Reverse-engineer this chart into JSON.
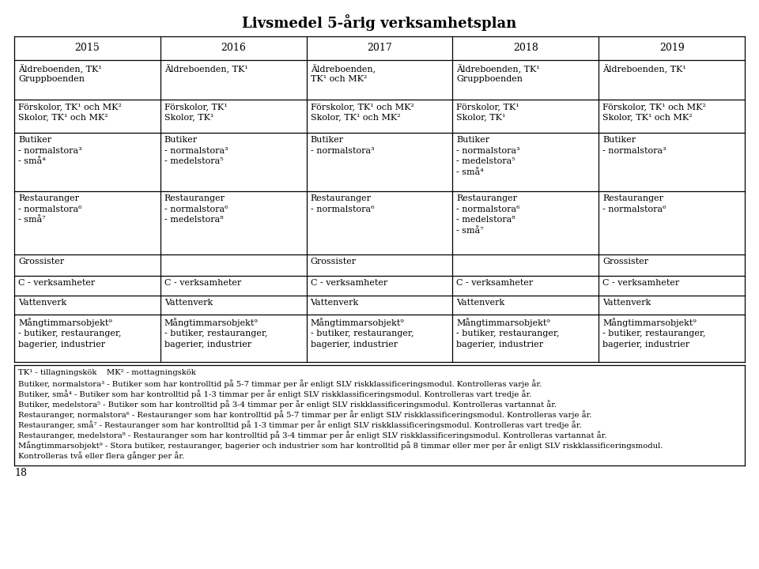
{
  "title": "Livsmedel 5-årig verksamhetsplan",
  "columns": [
    "2015",
    "2016",
    "2017",
    "2018",
    "2019"
  ],
  "rows": [
    [
      "Äldreboenden, TK¹\nGruppboenden",
      "Äldreboenden, TK¹",
      "Äldreboenden,\nTK¹ och MK²",
      "Äldreboenden, TK¹\nGruppboenden",
      "Äldreboenden, TK¹"
    ],
    [
      "Förskolor, TK¹ och MK²\nSkolor, TK¹ och MK²",
      "Förskolor, TK¹\nSkolor, TK¹",
      "Förskolor, TK¹ och MK²\nSkolor, TK¹ och MK²",
      "Förskolor, TK¹\nSkolor, TK¹",
      "Förskolor, TK¹ och MK²\nSkolor, TK¹ och MK²"
    ],
    [
      "Butiker\n- normalstora³\n- små⁴",
      "Butiker\n- normalstora³\n- medelstora⁵",
      "Butiker\n- normalstora³",
      "Butiker\n- normalstora³\n- medelstora⁵\n- små⁴",
      "Butiker\n- normalstora³"
    ],
    [
      "Restauranger\n- normalstora⁶\n- små⁷",
      "Restauranger\n- normalstora⁶\n- medelstora⁸",
      "Restauranger\n- normalstora⁶",
      "Restauranger\n- normalstora⁶\n- medelstora⁸\n- små⁷",
      "Restauranger\n- normalstora⁶"
    ],
    [
      "Grossister",
      "",
      "Grossister",
      "",
      "Grossister"
    ],
    [
      "C - verksamheter",
      "C - verksamheter",
      "C - verksamheter",
      "C - verksamheter",
      "C - verksamheter"
    ],
    [
      "Vattenverk",
      "Vattenverk",
      "Vattenverk",
      "Vattenverk",
      "Vattenverk"
    ],
    [
      "Mångtimmarsobjekt⁹\n- butiker, restauranger,\nbagerier, industrier",
      "Mångtimmarsobjekt⁹\n- butiker, restauranger,\nbagerier, industrier",
      "Mångtimmarsobjekt⁹\n- butiker, restauranger,\nbagerier, industrier",
      "Mångtimmarsobjekt⁹\n- butiker, restauranger,\nbagerier, industrier",
      "Mångtimmarsobjekt⁹\n- butiker, restauranger,\nbagerier, industrier"
    ]
  ],
  "footnote_header": "TK¹ - tillagningskök    MK² - mottagningskök",
  "footnotes": [
    "Butiker, normalstora³ - Butiker som har kontrolltid på 5-7 timmar per år enligt SLV riskklassificeringsmodul. Kontrolleras varje år.",
    "Butiker, små⁴ - Butiker som har kontrolltid på 1-3 timmar per år enligt SLV riskklassificeringsmodul. Kontrolleras vart tredje år.",
    "Butiker, medelstora⁵ - Butiker som har kontrolltid på 3-4 timmar per år enligt SLV riskklassificeringsmodul. Kontrolleras vartannat år.",
    "Restauranger, normalstora⁶ - Restauranger som har kontrolltid på 5-7 timmar per år enligt SLV riskklassificeringsmodul. Kontrolleras varje år.",
    "Restauranger, små⁷ - Restauranger som har kontrolltid på 1-3 timmar per år enligt SLV riskklassificeringsmodul. Kontrolleras vart tredje år.",
    "Restauranger, medelstora⁸ - Restauranger som har kontrolltid på 3-4 timmar per år enligt SLV riskklassificeringsmodul. Kontrolleras vartannat år.",
    "Mångtimmarsobjekt⁹ - Stora butiker, restauranger, bagerier och industrier som har kontrolltid på 8 timmar eller mer per år enligt SLV riskklassificeringsmodul.\nKontrolleras två eller flera gånger per år."
  ],
  "page_number": "18",
  "bg_color": "#ffffff",
  "text_color": "#000000",
  "border_color": "#000000",
  "title_fontsize": 13,
  "header_fontsize": 9,
  "cell_fontsize": 8,
  "footnote_fontsize": 7.2
}
